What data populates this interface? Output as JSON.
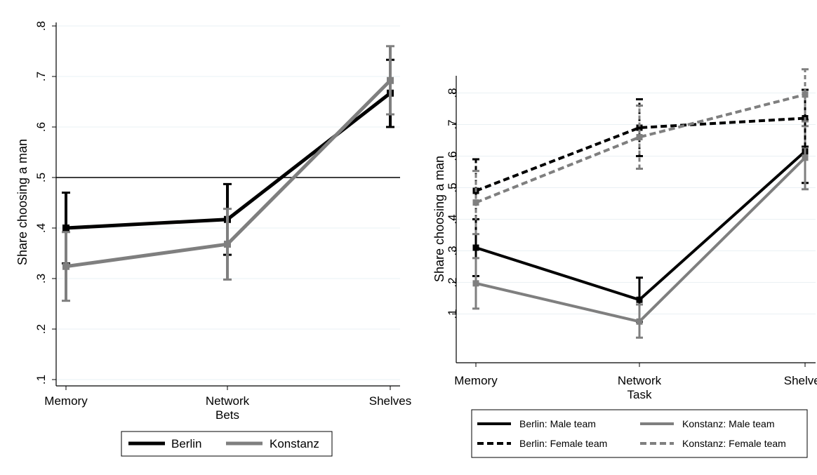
{
  "chart_data": [
    {
      "type": "line",
      "xlabel": "Bets",
      "ylabel": "Share choosing a man",
      "categories": [
        "Memory",
        "Network",
        "Shelves"
      ],
      "ylim": [
        0.1,
        0.8
      ],
      "yticks": [
        ".1",
        ".2",
        ".3",
        ".4",
        ".5",
        ".6",
        ".7",
        ".8"
      ],
      "reference_line": 0.5,
      "grid": true,
      "legend_position": "bottom",
      "series": [
        {
          "name": "Berlin",
          "color": "#000000",
          "dash": "solid",
          "values": [
            0.4,
            0.417,
            0.667
          ],
          "ci_low": [
            0.33,
            0.347,
            0.6
          ],
          "ci_high": [
            0.47,
            0.487,
            0.733
          ]
        },
        {
          "name": "Konstanz",
          "color": "#7f7f7f",
          "dash": "solid",
          "values": [
            0.324,
            0.368,
            0.692
          ],
          "ci_low": [
            0.256,
            0.298,
            0.625
          ],
          "ci_high": [
            0.392,
            0.438,
            0.76
          ]
        }
      ]
    },
    {
      "type": "line",
      "xlabel": "Task",
      "ylabel": "Share choosing a man",
      "categories": [
        "Memory",
        "Network",
        "Shelves"
      ],
      "ylim": [
        0.0,
        0.85
      ],
      "yticks": [
        ".1",
        ".2",
        ".3",
        ".4",
        ".5",
        ".6",
        ".7",
        ".8"
      ],
      "grid": true,
      "legend_position": "bottom",
      "series": [
        {
          "name": "Berlin: Male team",
          "color": "#000000",
          "dash": "solid",
          "values": [
            0.31,
            0.145,
            0.615
          ],
          "ci_low": [
            0.22,
            0.075,
            0.515
          ],
          "ci_high": [
            0.4,
            0.215,
            0.715
          ]
        },
        {
          "name": "Konstanz: Male team",
          "color": "#7f7f7f",
          "dash": "solid",
          "values": [
            0.197,
            0.076,
            0.595
          ],
          "ci_low": [
            0.117,
            0.025,
            0.495
          ],
          "ci_high": [
            0.277,
            0.13,
            0.695
          ]
        },
        {
          "name": "Berlin: Female team",
          "color": "#000000",
          "dash": "dashed",
          "values": [
            0.49,
            0.69,
            0.72
          ],
          "ci_low": [
            0.4,
            0.6,
            0.63
          ],
          "ci_high": [
            0.59,
            0.78,
            0.81
          ]
        },
        {
          "name": "Konstanz: Female team",
          "color": "#7f7f7f",
          "dash": "dashed",
          "values": [
            0.453,
            0.66,
            0.795
          ],
          "ci_low": [
            0.353,
            0.56,
            0.71
          ],
          "ci_high": [
            0.553,
            0.76,
            0.875
          ]
        }
      ]
    }
  ]
}
